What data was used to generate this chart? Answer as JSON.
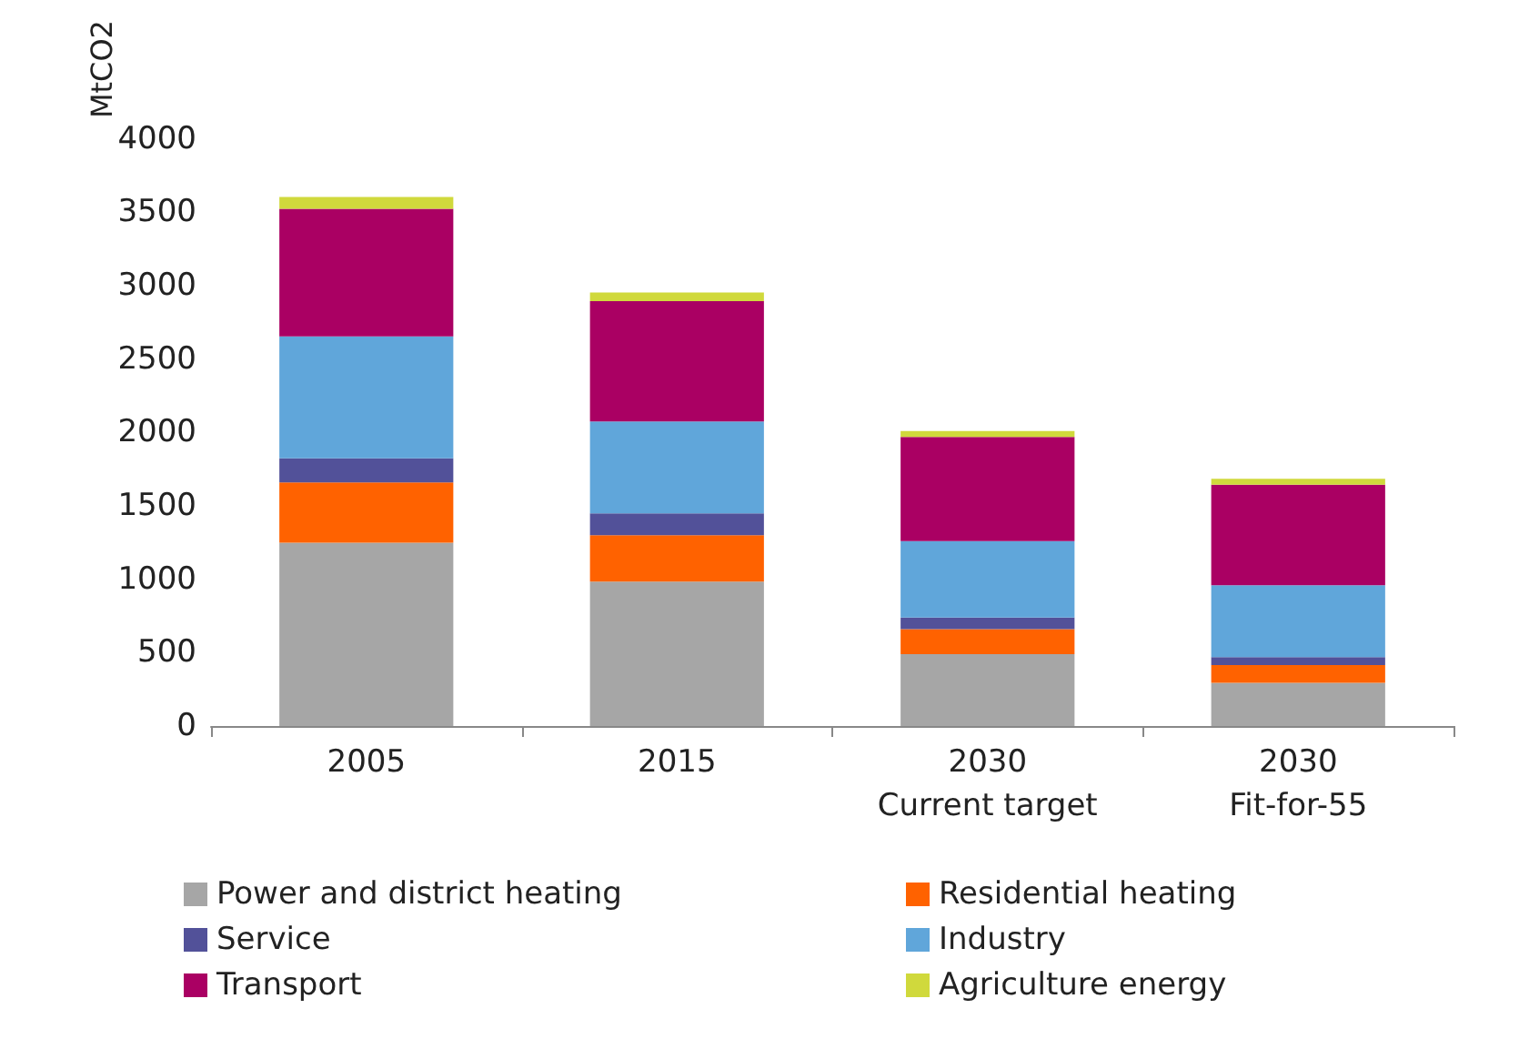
{
  "chart_data": {
    "type": "bar",
    "stacked": true,
    "ylabel": "MtCO2",
    "categories": [
      "2005",
      "2015",
      "2030\nCurrent target",
      "2030\nFit-for-55"
    ],
    "ylim": [
      0,
      4000
    ],
    "yticks": [
      0,
      500,
      1000,
      1500,
      2000,
      2500,
      3000,
      3500,
      4000
    ],
    "grid": false,
    "legend": "bottom",
    "series": [
      {
        "name": "Power and district heating",
        "color": "#a6a6a6",
        "values": [
          1250,
          985,
          490,
          295
        ]
      },
      {
        "name": "Residential heating",
        "color": "#ff6200",
        "values": [
          410,
          315,
          170,
          120
        ]
      },
      {
        "name": "Service",
        "color": "#525199",
        "values": [
          165,
          150,
          80,
          55
        ]
      },
      {
        "name": "Industry",
        "color": "#60a6da",
        "values": [
          830,
          625,
          520,
          490
        ]
      },
      {
        "name": "Transport",
        "color": "#aa0063",
        "values": [
          870,
          820,
          710,
          685
        ]
      },
      {
        "name": "Agriculture energy",
        "color": "#d0d93c",
        "values": [
          80,
          60,
          40,
          40
        ]
      }
    ]
  }
}
